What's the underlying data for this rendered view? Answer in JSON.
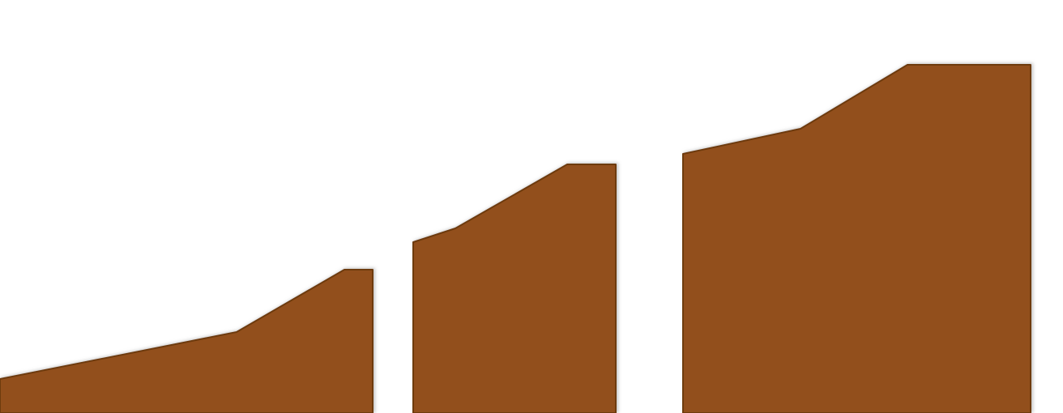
{
  "colors": {
    "background": "#ffffff",
    "shape_fill": "#92501A",
    "shape_edge": "#6E3A10",
    "shape_shadow": "#9a9a9a"
  },
  "shapes": [
    {
      "name": "left-brown-block"
    },
    {
      "name": "middle-brown-block"
    },
    {
      "name": "right-brown-block"
    }
  ]
}
